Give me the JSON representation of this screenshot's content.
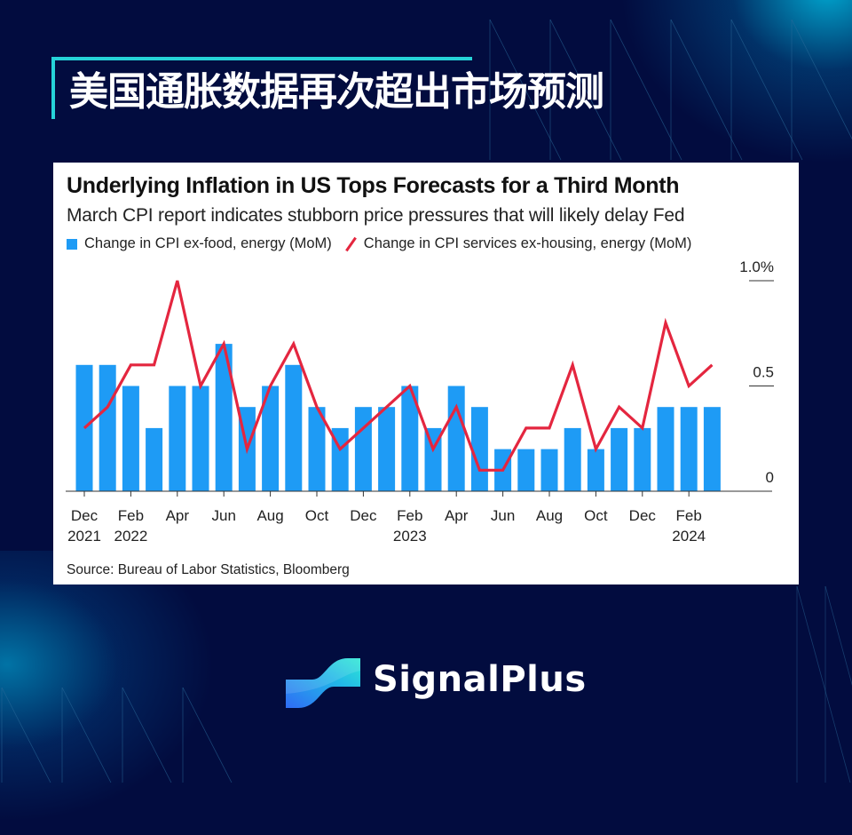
{
  "header": {
    "title": "美国通胀数据再次超出市场预测"
  },
  "card": {
    "title": "Underlying Inflation in US Tops Forecasts for a Third Month",
    "subtitle": "March CPI report indicates stubborn price pressures that will likely delay Fed",
    "legend": {
      "bar_label": "Change in CPI ex-food, energy (MoM)",
      "line_label": "Change in CPI services ex-housing, energy (MoM)"
    },
    "source": "Source: Bureau of Labor Statistics, Bloomberg"
  },
  "brand": {
    "name": "SignalPlus"
  },
  "colors": {
    "background": "#020c3f",
    "accent": "#26d3d8",
    "bar": "#1e9bf5",
    "line": "#e4263f"
  },
  "chart_data": {
    "type": "bar",
    "title": "Underlying Inflation in US Tops Forecasts for a Third Month",
    "subtitle": "March CPI report indicates stubborn price pressures that will likely delay Fed",
    "xlabel": "",
    "ylabel": "",
    "ylim": [
      0,
      1.0
    ],
    "yticks": [
      "0",
      "0.5",
      "1.0%"
    ],
    "y_axis_position": "right",
    "legend_position": "top",
    "grid": false,
    "categories": [
      "Dec 2021",
      "Jan 2022",
      "Feb 2022",
      "Mar 2022",
      "Apr 2022",
      "May 2022",
      "Jun 2022",
      "Jul 2022",
      "Aug 2022",
      "Sep 2022",
      "Oct 2022",
      "Nov 2022",
      "Dec 2022",
      "Jan 2023",
      "Feb 2023",
      "Mar 2023",
      "Apr 2023",
      "May 2023",
      "Jun 2023",
      "Jul 2023",
      "Aug 2023",
      "Sep 2023",
      "Oct 2023",
      "Nov 2023",
      "Dec 2023",
      "Jan 2024",
      "Feb 2024",
      "Mar 2024"
    ],
    "x_tick_labels": [
      {
        "index": 0,
        "month": "Dec",
        "year": "2021"
      },
      {
        "index": 2,
        "month": "Feb",
        "year": "2022"
      },
      {
        "index": 4,
        "month": "Apr",
        "year": ""
      },
      {
        "index": 6,
        "month": "Jun",
        "year": ""
      },
      {
        "index": 8,
        "month": "Aug",
        "year": ""
      },
      {
        "index": 10,
        "month": "Oct",
        "year": ""
      },
      {
        "index": 12,
        "month": "Dec",
        "year": ""
      },
      {
        "index": 14,
        "month": "Feb",
        "year": "2023"
      },
      {
        "index": 16,
        "month": "Apr",
        "year": ""
      },
      {
        "index": 18,
        "month": "Jun",
        "year": ""
      },
      {
        "index": 20,
        "month": "Aug",
        "year": ""
      },
      {
        "index": 22,
        "month": "Oct",
        "year": ""
      },
      {
        "index": 24,
        "month": "Dec",
        "year": ""
      },
      {
        "index": 26,
        "month": "Feb",
        "year": "2024"
      }
    ],
    "series": [
      {
        "name": "Change in CPI ex-food, energy (MoM)",
        "type": "bar",
        "color": "#1e9bf5",
        "values": [
          0.6,
          0.6,
          0.5,
          0.3,
          0.5,
          0.5,
          0.7,
          0.4,
          0.5,
          0.6,
          0.4,
          0.3,
          0.4,
          0.4,
          0.5,
          0.3,
          0.5,
          0.4,
          0.2,
          0.2,
          0.2,
          0.3,
          0.2,
          0.3,
          0.3,
          0.4,
          0.4,
          0.4
        ]
      },
      {
        "name": "Change in CPI services ex-housing, energy (MoM)",
        "type": "line",
        "color": "#e4263f",
        "values": [
          0.3,
          0.4,
          0.6,
          0.6,
          1.0,
          0.5,
          0.7,
          0.2,
          0.5,
          0.7,
          0.4,
          0.2,
          0.3,
          0.4,
          0.5,
          0.2,
          0.4,
          0.1,
          0.1,
          0.3,
          0.3,
          0.6,
          0.2,
          0.4,
          0.3,
          0.8,
          0.5,
          0.6
        ]
      }
    ]
  }
}
